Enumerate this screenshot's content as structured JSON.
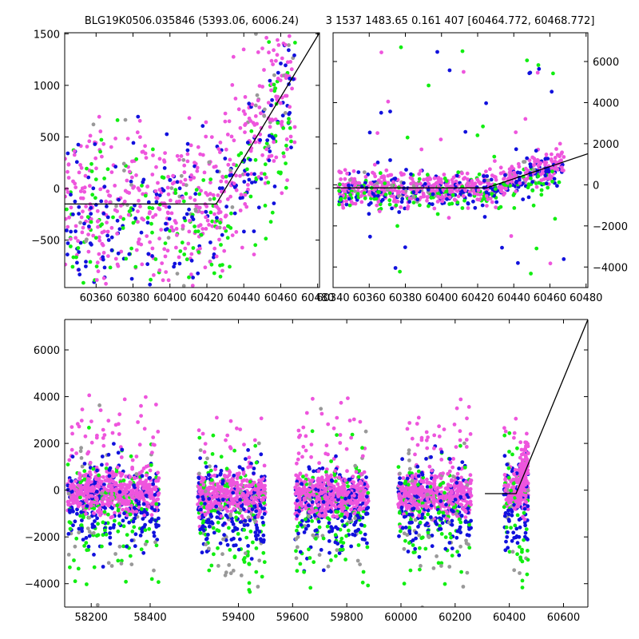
{
  "title_left": "BLG19K0506.035846 (5393.06, 6006.24)",
  "title_right": "3 1537 1483.65 0.161 407 [60464.772, 60468.772]",
  "colors": {
    "magenta": "#ee55dd",
    "blue": "#1111dd",
    "green": "#11ee11",
    "gray": "#999999",
    "model": "#000000"
  },
  "chart_data": [
    {
      "id": "top-left",
      "type": "scatter",
      "xlim": [
        60343,
        60481
      ],
      "ylim": [
        -960,
        1510
      ],
      "xticks": [
        60360,
        60380,
        60400,
        60420,
        60440,
        60460,
        60480
      ],
      "yticks": [
        -500,
        0,
        500,
        1000,
        1500
      ],
      "model_line": {
        "x": [
          60343,
          60425,
          60481
        ],
        "y": [
          -150,
          -150,
          1510
        ]
      }
    },
    {
      "id": "top-right",
      "type": "scatter",
      "xlim": [
        60340,
        60481
      ],
      "ylim": [
        -5000,
        7400
      ],
      "xticks": [
        60340,
        60360,
        60380,
        60400,
        60420,
        60440,
        60460,
        60480
      ],
      "yticks": [
        -4000,
        -2000,
        0,
        2000,
        4000,
        6000
      ],
      "model_line": {
        "x": [
          60340,
          60425,
          60481
        ],
        "y": [
          -150,
          -150,
          1510
        ]
      }
    },
    {
      "id": "bottom",
      "type": "scatter",
      "xlim": [
        58110,
        60690
      ],
      "ylim": [
        -5000,
        7300
      ],
      "xticks": [
        58200,
        58400,
        59400,
        59600,
        59800,
        60000,
        60200,
        60400,
        60600
      ],
      "yticks": [
        -4000,
        -2000,
        0,
        2000,
        4000,
        6000
      ],
      "axis_break_x": 58465,
      "model_line": {
        "x": [
          60310,
          60425,
          60690
        ],
        "y": [
          -150,
          -150,
          7300
        ]
      },
      "segments": [
        {
          "x": [
            58120,
            58430
          ],
          "center": -100
        },
        {
          "x": [
            59250,
            59500
          ],
          "center": -200
        },
        {
          "x": [
            59610,
            59880
          ],
          "center": -250
        },
        {
          "x": [
            59990,
            60260
          ],
          "center": -200
        },
        {
          "x": [
            60380,
            60470
          ],
          "center": -100
        }
      ]
    }
  ]
}
